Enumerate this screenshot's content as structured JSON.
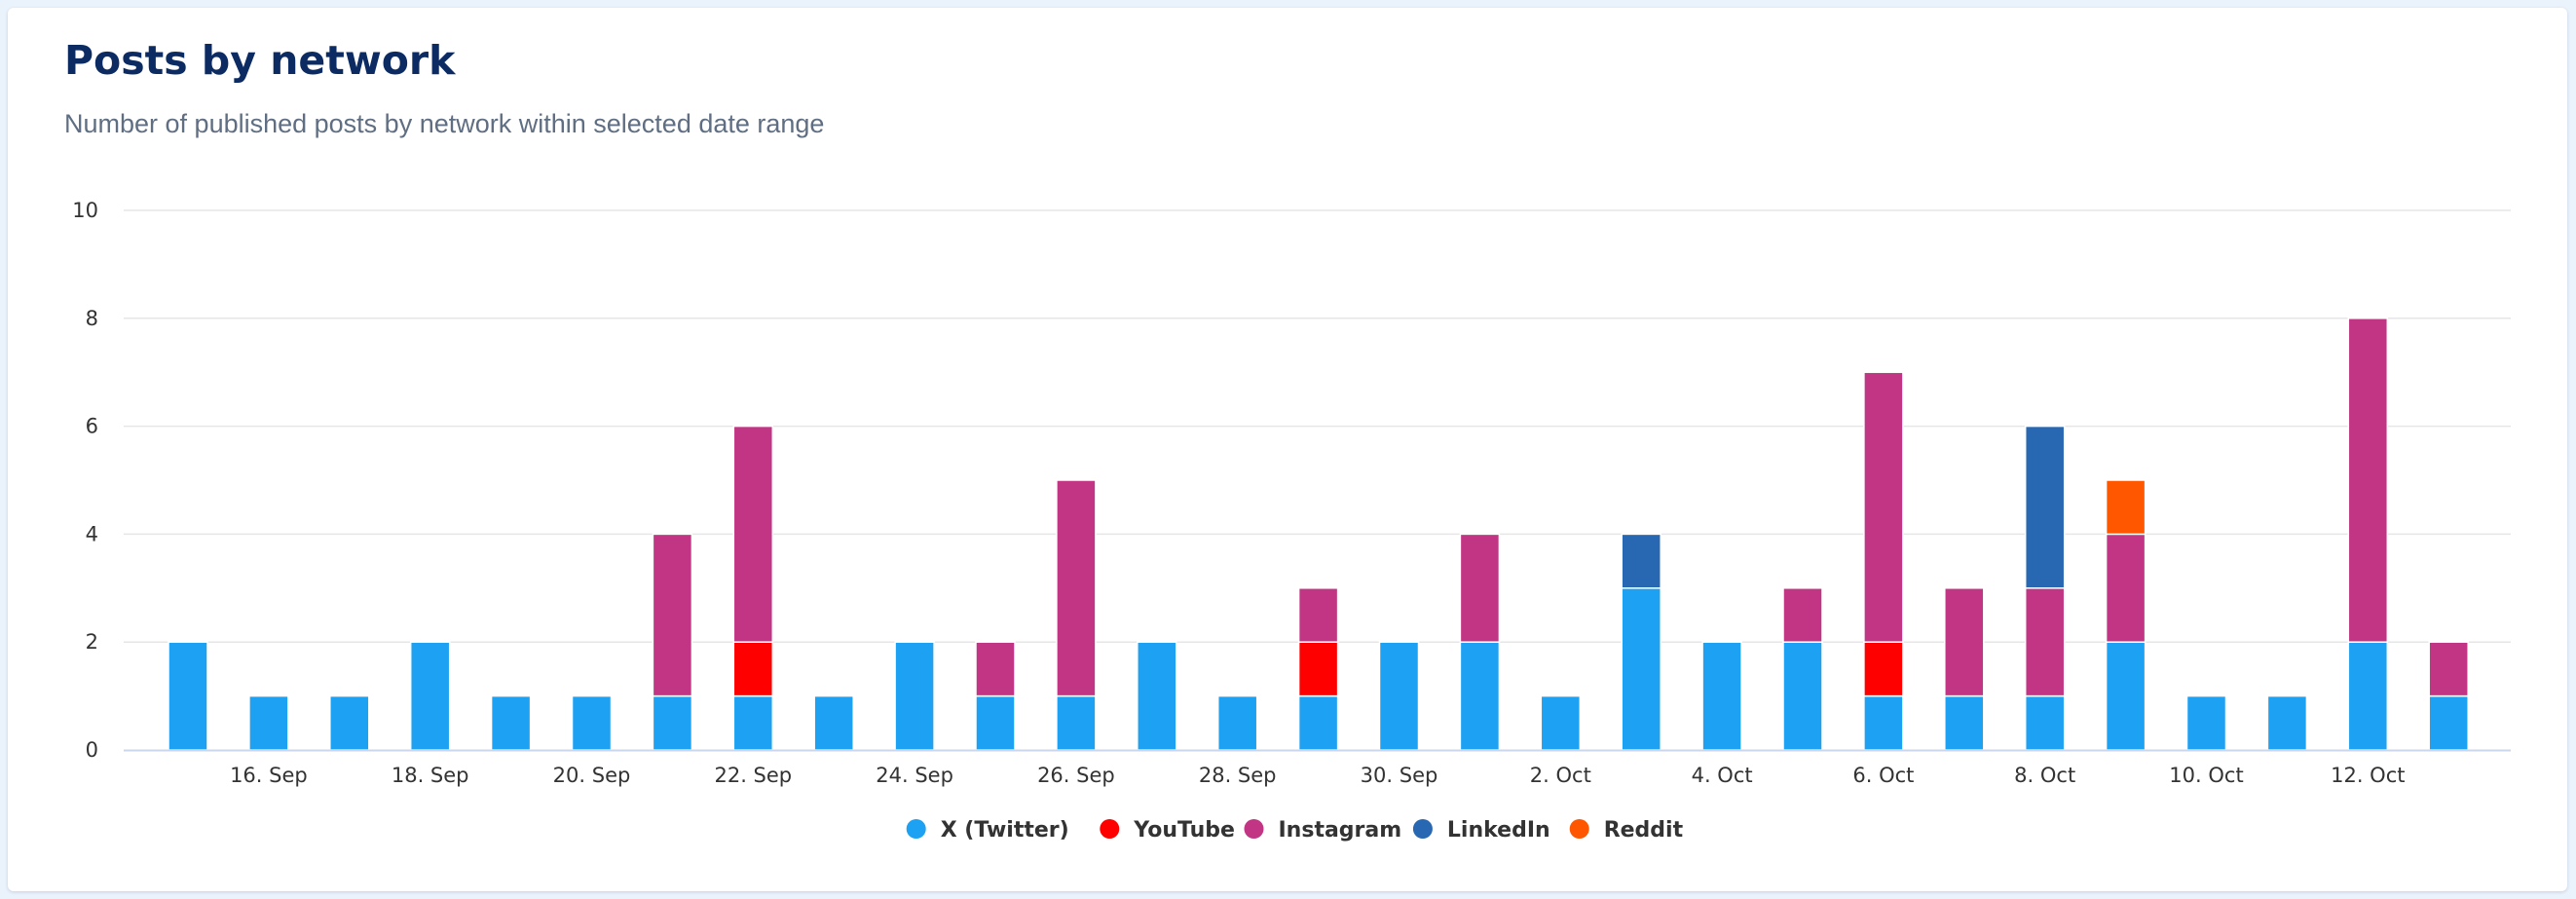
{
  "header": {
    "title": "Posts by network",
    "subtitle": "Number of published posts by network within selected date range"
  },
  "chart_data": {
    "type": "bar",
    "stacked": true,
    "title": "Posts by network",
    "subtitle": "Number of published posts by network within selected date range",
    "xlabel": "",
    "ylabel": "",
    "ylim": [
      0,
      10
    ],
    "y_ticks": [
      0,
      2,
      4,
      6,
      8,
      10
    ],
    "grid": true,
    "legend_position": "bottom-center",
    "categories": [
      "15. Sep",
      "16. Sep",
      "17. Sep",
      "18. Sep",
      "19. Sep",
      "20. Sep",
      "21. Sep",
      "22. Sep",
      "23. Sep",
      "24. Sep",
      "25. Sep",
      "26. Sep",
      "27. Sep",
      "28. Sep",
      "29. Sep",
      "30. Sep",
      "1. Oct",
      "2. Oct",
      "3. Oct",
      "4. Oct",
      "5. Oct",
      "6. Oct",
      "7. Oct",
      "8. Oct",
      "9. Oct",
      "10. Oct",
      "11. Oct",
      "12. Oct",
      "13. Oct"
    ],
    "x_tick_labels": [
      "16. Sep",
      "18. Sep",
      "20. Sep",
      "22. Sep",
      "24. Sep",
      "26. Sep",
      "28. Sep",
      "30. Sep",
      "2. Oct",
      "4. Oct",
      "6. Oct",
      "8. Oct",
      "10. Oct",
      "12. Oct"
    ],
    "series": [
      {
        "name": "X (Twitter)",
        "color": "#1da1f2",
        "values": [
          2,
          1,
          1,
          2,
          1,
          1,
          1,
          1,
          1,
          2,
          1,
          1,
          2,
          1,
          1,
          2,
          2,
          1,
          3,
          2,
          2,
          1,
          1,
          1,
          2,
          1,
          1,
          2,
          1
        ]
      },
      {
        "name": "YouTube",
        "color": "#ff0000",
        "values": [
          0,
          0,
          0,
          0,
          0,
          0,
          0,
          1,
          0,
          0,
          0,
          0,
          0,
          0,
          1,
          0,
          0,
          0,
          0,
          0,
          0,
          1,
          0,
          0,
          0,
          0,
          0,
          0,
          0
        ]
      },
      {
        "name": "Instagram",
        "color": "#c13584",
        "values": [
          0,
          0,
          0,
          0,
          0,
          0,
          3,
          4,
          0,
          0,
          1,
          4,
          0,
          0,
          1,
          0,
          2,
          0,
          0,
          0,
          1,
          5,
          2,
          2,
          2,
          0,
          0,
          6,
          1
        ]
      },
      {
        "name": "LinkedIn",
        "color": "#2867b2",
        "values": [
          0,
          0,
          0,
          0,
          0,
          0,
          0,
          0,
          0,
          0,
          0,
          0,
          0,
          0,
          0,
          0,
          0,
          0,
          1,
          0,
          0,
          0,
          0,
          3,
          0,
          0,
          0,
          0,
          0
        ]
      },
      {
        "name": "Reddit",
        "color": "#ff5700",
        "values": [
          0,
          0,
          0,
          0,
          0,
          0,
          0,
          0,
          0,
          0,
          0,
          0,
          0,
          0,
          0,
          0,
          0,
          0,
          0,
          0,
          0,
          0,
          0,
          0,
          1,
          0,
          0,
          0,
          0
        ]
      }
    ]
  }
}
